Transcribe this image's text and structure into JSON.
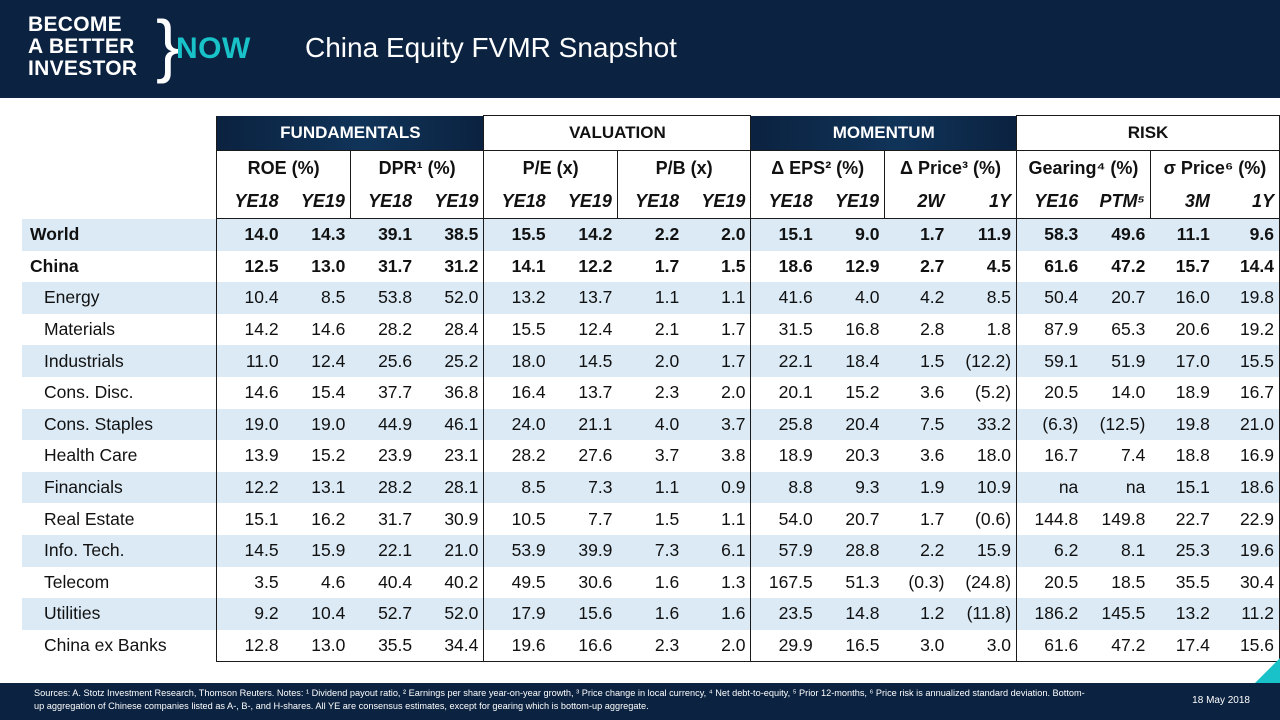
{
  "brand": {
    "line1": "BECOME",
    "line2": "A BETTER",
    "line3": "INVESTOR",
    "brace": "}",
    "now": "NOW"
  },
  "title": "China Equity FVMR Snapshot",
  "groups": [
    "FUNDAMENTALS",
    "VALUATION",
    "MOMENTUM",
    "RISK"
  ],
  "metrics": [
    "ROE (%)",
    "DPR¹ (%)",
    "P/E (x)",
    "P/B (x)",
    "Δ EPS² (%)",
    "Δ Price³ (%)",
    "Gearing⁴ (%)",
    "σ Price⁶ (%)"
  ],
  "periods": [
    "YE18",
    "YE19",
    "YE18",
    "YE19",
    "YE18",
    "YE19",
    "YE18",
    "YE19",
    "YE18",
    "YE19",
    "2W",
    "1Y",
    "YE16",
    "PTM⁵",
    "3M",
    "1Y"
  ],
  "rows": [
    {
      "name": "World",
      "values": [
        "14.0",
        "14.3",
        "39.1",
        "38.5",
        "15.5",
        "14.2",
        "2.2",
        "2.0",
        "15.1",
        "9.0",
        "1.7",
        "11.9",
        "58.3",
        "49.6",
        "11.1",
        "9.6"
      ]
    },
    {
      "name": "China",
      "values": [
        "12.5",
        "13.0",
        "31.7",
        "31.2",
        "14.1",
        "12.2",
        "1.7",
        "1.5",
        "18.6",
        "12.9",
        "2.7",
        "4.5",
        "61.6",
        "47.2",
        "15.7",
        "14.4"
      ]
    },
    {
      "name": "Energy",
      "values": [
        "10.4",
        "8.5",
        "53.8",
        "52.0",
        "13.2",
        "13.7",
        "1.1",
        "1.1",
        "41.6",
        "4.0",
        "4.2",
        "8.5",
        "50.4",
        "20.7",
        "16.0",
        "19.8"
      ]
    },
    {
      "name": "Materials",
      "values": [
        "14.2",
        "14.6",
        "28.2",
        "28.4",
        "15.5",
        "12.4",
        "2.1",
        "1.7",
        "31.5",
        "16.8",
        "2.8",
        "1.8",
        "87.9",
        "65.3",
        "20.6",
        "19.2"
      ]
    },
    {
      "name": "Industrials",
      "values": [
        "11.0",
        "12.4",
        "25.6",
        "25.2",
        "18.0",
        "14.5",
        "2.0",
        "1.7",
        "22.1",
        "18.4",
        "1.5",
        "(12.2)",
        "59.1",
        "51.9",
        "17.0",
        "15.5"
      ]
    },
    {
      "name": "Cons. Disc.",
      "values": [
        "14.6",
        "15.4",
        "37.7",
        "36.8",
        "16.4",
        "13.7",
        "2.3",
        "2.0",
        "20.1",
        "15.2",
        "3.6",
        "(5.2)",
        "20.5",
        "14.0",
        "18.9",
        "16.7"
      ]
    },
    {
      "name": "Cons. Staples",
      "values": [
        "19.0",
        "19.0",
        "44.9",
        "46.1",
        "24.0",
        "21.1",
        "4.0",
        "3.7",
        "25.8",
        "20.4",
        "7.5",
        "33.2",
        "(6.3)",
        "(12.5)",
        "19.8",
        "21.0"
      ]
    },
    {
      "name": "Health Care",
      "values": [
        "13.9",
        "15.2",
        "23.9",
        "23.1",
        "28.2",
        "27.6",
        "3.7",
        "3.8",
        "18.9",
        "20.3",
        "3.6",
        "18.0",
        "16.7",
        "7.4",
        "18.8",
        "16.9"
      ]
    },
    {
      "name": "Financials",
      "values": [
        "12.2",
        "13.1",
        "28.2",
        "28.1",
        "8.5",
        "7.3",
        "1.1",
        "0.9",
        "8.8",
        "9.3",
        "1.9",
        "10.9",
        "na",
        "na",
        "15.1",
        "18.6"
      ]
    },
    {
      "name": "Real Estate",
      "values": [
        "15.1",
        "16.2",
        "31.7",
        "30.9",
        "10.5",
        "7.7",
        "1.5",
        "1.1",
        "54.0",
        "20.7",
        "1.7",
        "(0.6)",
        "144.8",
        "149.8",
        "22.7",
        "22.9"
      ]
    },
    {
      "name": "Info. Tech.",
      "values": [
        "14.5",
        "15.9",
        "22.1",
        "21.0",
        "53.9",
        "39.9",
        "7.3",
        "6.1",
        "57.9",
        "28.8",
        "2.2",
        "15.9",
        "6.2",
        "8.1",
        "25.3",
        "19.6"
      ]
    },
    {
      "name": "Telecom",
      "values": [
        "3.5",
        "4.6",
        "40.4",
        "40.2",
        "49.5",
        "30.6",
        "1.6",
        "1.3",
        "167.5",
        "51.3",
        "(0.3)",
        "(24.8)",
        "20.5",
        "18.5",
        "35.5",
        "30.4"
      ]
    },
    {
      "name": "Utilities",
      "values": [
        "9.2",
        "10.4",
        "52.7",
        "52.0",
        "17.9",
        "15.6",
        "1.6",
        "1.6",
        "23.5",
        "14.8",
        "1.2",
        "(11.8)",
        "186.2",
        "145.5",
        "13.2",
        "11.2"
      ]
    },
    {
      "name": "China ex Banks",
      "values": [
        "12.8",
        "13.0",
        "35.5",
        "34.4",
        "19.6",
        "16.6",
        "2.3",
        "2.0",
        "29.9",
        "16.5",
        "3.0",
        "3.0",
        "61.6",
        "47.2",
        "17.4",
        "15.6"
      ]
    }
  ],
  "footer": {
    "notes": "Sources: A. Stotz Investment Research, Thomson Reuters. Notes: ¹ Dividend payout ratio, ² Earnings per share year-on-year growth, ³ Price change in local currency, ⁴ Net debt-to-equity, ⁵ Prior 12-months, ⁶ Price risk is annualized standard deviation. Bottom-up aggregation of Chinese companies listed as A-, B-, and H-shares. All YE are consensus estimates, except for gearing which is bottom-up aggregate.",
    "date": "18 May 2018"
  },
  "colors": {
    "navy": "#0b2240",
    "teal": "#18c2c8",
    "row_shade": "#dbeaf5"
  }
}
